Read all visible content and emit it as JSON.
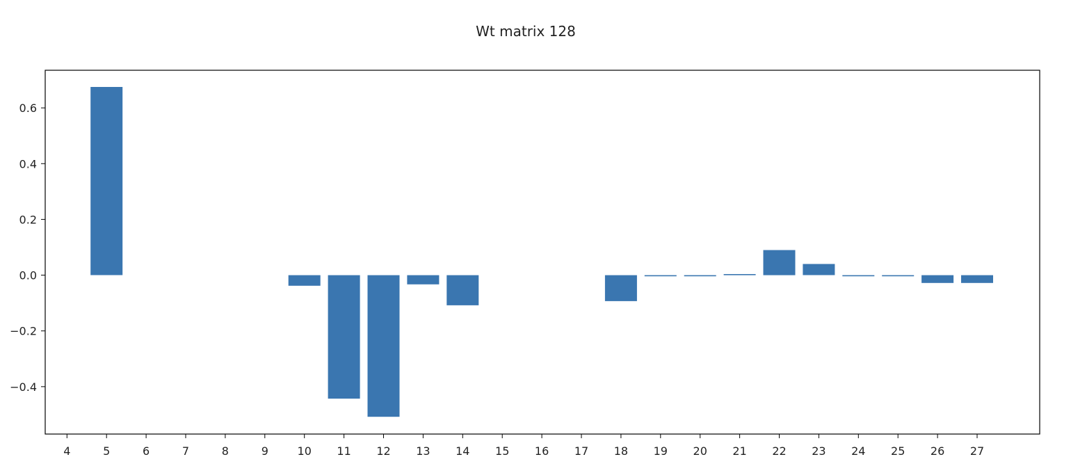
{
  "chart_data": {
    "type": "bar",
    "title": "Wt matrix 128",
    "xlabel": "",
    "ylabel": "",
    "categories": [
      "4",
      "5",
      "6",
      "7",
      "8",
      "9",
      "10",
      "11",
      "12",
      "13",
      "14",
      "15",
      "16",
      "17",
      "18",
      "19",
      "20",
      "21",
      "22",
      "23",
      "24",
      "25",
      "26",
      "27"
    ],
    "values": [
      0,
      0.675,
      0,
      0,
      0,
      0,
      -0.038,
      -0.443,
      -0.508,
      -0.033,
      -0.108,
      0,
      0,
      0,
      -0.093,
      -0.004,
      -0.004,
      0.004,
      0.09,
      0.04,
      -0.004,
      -0.004,
      -0.028,
      -0.028
    ],
    "yticks": [
      -0.4,
      -0.2,
      0.0,
      0.2,
      0.4,
      0.6
    ],
    "ytick_labels": [
      "−0.4",
      "−0.2",
      "0.0",
      "0.2",
      "0.4",
      "0.6"
    ],
    "ylim": [
      -0.57,
      0.735
    ],
    "grid": false,
    "bar_color": "#3a76b0"
  }
}
